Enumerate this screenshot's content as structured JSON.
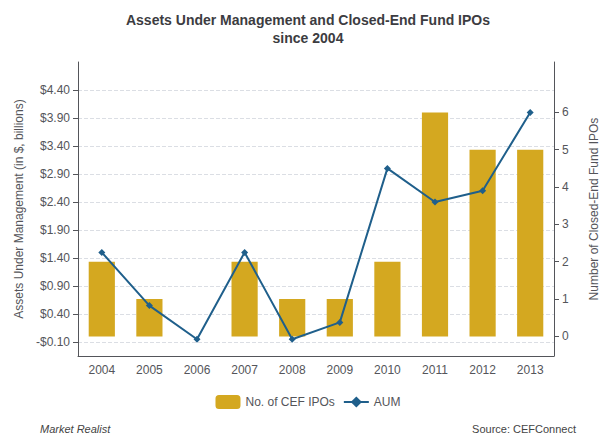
{
  "chart_data": {
    "type": "bar",
    "title": "Assets Under Management and Closed-End Fund IPOs\nsince 2004",
    "categories": [
      "2004",
      "2005",
      "2006",
      "2007",
      "2008",
      "2009",
      "2010",
      "2011",
      "2012",
      "2013"
    ],
    "series": [
      {
        "name": "No. of CEF IPOs",
        "type": "bar",
        "axis": "y2",
        "color": "#D4A820",
        "values": [
          2,
          1,
          0,
          2,
          1,
          1,
          2,
          6,
          5,
          5
        ]
      },
      {
        "name": "AUM",
        "type": "line",
        "axis": "y",
        "color": "#1F5F8B",
        "marker": "diamond",
        "values": [
          1.5,
          0.55,
          -0.05,
          1.5,
          -0.05,
          0.25,
          3.0,
          2.4,
          2.6,
          4.0
        ]
      }
    ],
    "ylabel": "Assets Under Management (in $, billions)",
    "y2label": "Number of Closed-End Fund IPOs",
    "ylim": [
      -0.35,
      4.9
    ],
    "yticks": [
      {
        "value": -0.1,
        "label": "-$0.10"
      },
      {
        "value": 0.4,
        "label": "$0.40"
      },
      {
        "value": 0.9,
        "label": "$0.90"
      },
      {
        "value": 1.4,
        "label": "$1.40"
      },
      {
        "value": 1.9,
        "label": "$1.90"
      },
      {
        "value": 2.4,
        "label": "$2.40"
      },
      {
        "value": 2.9,
        "label": "$2.90"
      },
      {
        "value": 3.4,
        "label": "$3.40"
      },
      {
        "value": 3.9,
        "label": "$3.90"
      },
      {
        "value": 4.4,
        "label": "$4.40"
      }
    ],
    "y2lim": [
      -0.525,
      7.35
    ],
    "y2ticks": [
      0,
      1,
      2,
      3,
      4,
      5,
      6
    ],
    "grid": true,
    "legend": "bottom",
    "annotations": [
      "Market Realist",
      "Source: CEFConnect"
    ]
  }
}
